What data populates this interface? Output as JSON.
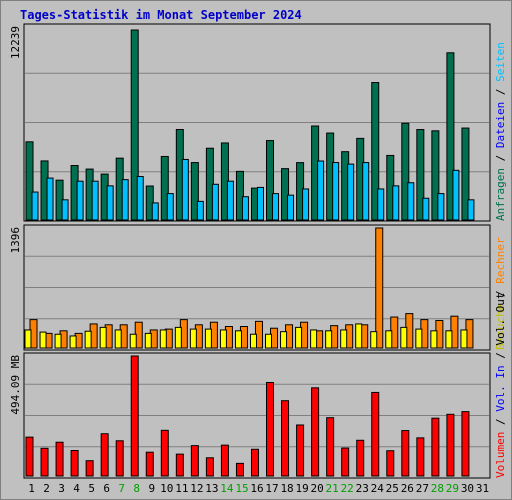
{
  "chart_data": {
    "type": "bar",
    "title": "Tages-Statistik im Monat September 2024",
    "x": [
      "1",
      "2",
      "3",
      "4",
      "5",
      "6",
      "7",
      "8",
      "9",
      "10",
      "11",
      "12",
      "13",
      "14",
      "15",
      "16",
      "17",
      "18",
      "19",
      "20",
      "21",
      "22",
      "23",
      "24",
      "25",
      "26",
      "27",
      "28",
      "29",
      "30",
      "31"
    ],
    "weekend_days": [
      "7",
      "8",
      "14",
      "15",
      "21",
      "22",
      "28",
      "29"
    ],
    "panels": [
      {
        "name": "top",
        "max_label": "12239",
        "right_labels": [
          {
            "text": "Anfragen",
            "color": "#007050"
          },
          {
            "text": " / ",
            "color": "#000000"
          },
          {
            "text": "Dateien",
            "color": "#0000ff"
          },
          {
            "text": " / ",
            "color": "#000000"
          },
          {
            "text": "Seiten",
            "color": "#00c0ff"
          }
        ],
        "series": [
          {
            "name": "Anfragen",
            "color": "#007050",
            "values": [
              5036,
              3806,
              2566,
              3510,
              3281,
              2958,
              3983,
              12239,
              2189,
              4093,
              5830,
              3699,
              4623,
              4963,
              3133,
              2054,
              5115,
              3308,
              3695,
              6055,
              5601,
              4401,
              5258,
              8855,
              4159,
              6232,
              5828,
              5745,
              10771,
              5923,
              0
            ]
          },
          {
            "name": "Dateien",
            "color": "#0000ff",
            "values": [
              1800,
              2500,
              1300,
              2300,
              2400,
              1900,
              2600,
              2900,
              1100,
              1700,
              3800,
              1200,
              2300,
              2400,
              1500,
              2000,
              1900,
              1600,
              2000,
              3700,
              3600,
              3600,
              3500,
              3600,
              2000,
              2200,
              2400,
              1400,
              1700,
              3100,
              1300
            ]
          },
          {
            "name": "Seiten",
            "color": "#00c0ff",
            "values": [
              1800,
              2700,
              1300,
              2500,
              2500,
              2200,
              2600,
              2800,
              1100,
              1700,
              3900,
              1200,
              2300,
              2500,
              1500,
              2100,
              1700,
              1600,
              2000,
              3800,
              3700,
              3600,
              3700,
              2000,
              2200,
              2400,
              1400,
              1700,
              3200,
              1300,
              0
            ]
          }
        ]
      },
      {
        "name": "mid",
        "max_label": "1396",
        "right_labels": [
          {
            "text": "Besuche",
            "color": "#c0c000"
          },
          {
            "text": " / ",
            "color": "#000000"
          },
          {
            "text": "Rechner",
            "color": "#ff8000"
          }
        ],
        "series": [
          {
            "name": "Besuche",
            "color": "#ffff00",
            "values": [
              210,
              185,
              160,
              140,
              195,
              240,
              210,
              160,
              170,
              210,
              240,
              220,
              220,
              210,
              200,
              160,
              160,
              190,
              240,
              210,
              200,
              210,
              280,
              190,
              200,
              240,
              220,
              200,
              200,
              210,
              0
            ]
          },
          {
            "name": "Rechner",
            "color": "#ff8000",
            "values": [
              330,
              170,
              200,
              170,
              280,
              270,
              270,
              300,
              210,
              220,
              330,
              270,
              300,
              250,
              250,
              310,
              230,
              270,
              300,
              200,
              260,
              270,
              270,
              1396,
              360,
              400,
              330,
              320,
              370,
              330,
              0
            ]
          }
        ]
      },
      {
        "name": "bot",
        "max_label": "494.09 MB",
        "right_labels": [
          {
            "text": "Volumen",
            "color": "#ff0000"
          },
          {
            "text": " / ",
            "color": "#000000"
          },
          {
            "text": "Vol. In",
            "color": "#0000ff"
          },
          {
            "text": " / ",
            "color": "#000000"
          },
          {
            "text": "Vol. Out",
            "color": "#000000"
          }
        ],
        "series": [
          {
            "name": "Volumen",
            "color": "#ff0000",
            "values": [
              160,
              114,
              139,
              105,
              63,
              174,
              145,
              494,
              98,
              188,
              90,
              125,
              75,
              127,
              52,
              110,
              385,
              310,
              210,
              363,
              240,
              115,
              147,
              344,
              104,
              187,
              157,
              238,
              254,
              265,
              0
            ]
          }
        ]
      }
    ]
  }
}
